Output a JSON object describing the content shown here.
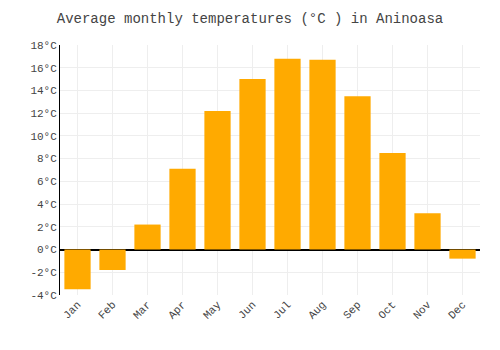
{
  "chart_data": {
    "type": "bar",
    "title": "Average monthly temperatures (°C ) in Aninoasa",
    "categories": [
      "Jan",
      "Feb",
      "Mar",
      "Apr",
      "May",
      "Jun",
      "Jul",
      "Aug",
      "Sep",
      "Oct",
      "Nov",
      "Dec"
    ],
    "values": [
      -3.5,
      -1.8,
      2.2,
      7.1,
      12.2,
      15.0,
      16.8,
      16.7,
      13.5,
      8.5,
      3.2,
      -0.8
    ],
    "color": "#FFAA00",
    "ylim": [
      -4,
      18
    ],
    "yticks": [
      {
        "value": -4,
        "label": "-4°C"
      },
      {
        "value": -2,
        "label": "-2°C"
      },
      {
        "value": 0,
        "label": "0°C"
      },
      {
        "value": 2,
        "label": "2°C"
      },
      {
        "value": 4,
        "label": "4°C"
      },
      {
        "value": 6,
        "label": "6°C"
      },
      {
        "value": 8,
        "label": "8°C"
      },
      {
        "value": 10,
        "label": "10°C"
      },
      {
        "value": 12,
        "label": "12°C"
      },
      {
        "value": 14,
        "label": "14°C"
      },
      {
        "value": 16,
        "label": "16°C"
      },
      {
        "value": 18,
        "label": "18°C"
      }
    ],
    "grid": true
  }
}
